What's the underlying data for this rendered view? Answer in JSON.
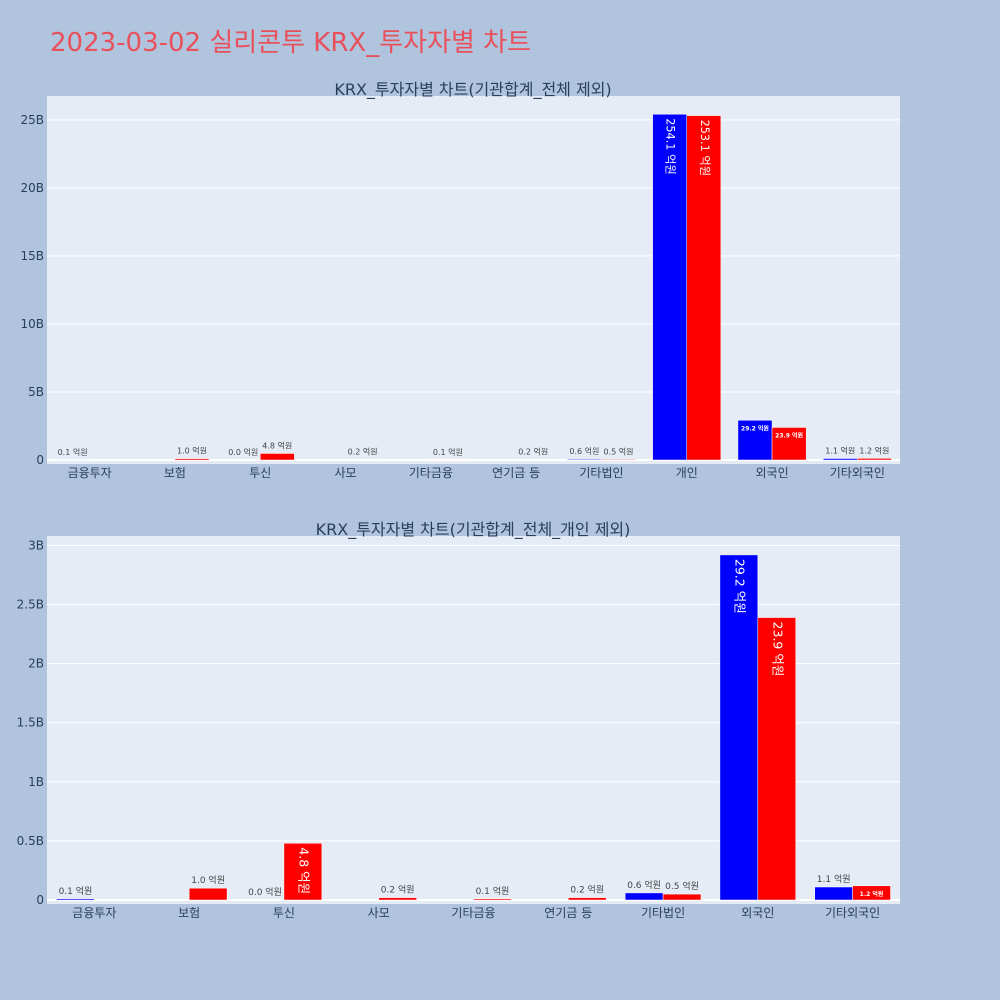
{
  "page_title": "2023-03-02 실리콘투 KRX_투자자별 차트",
  "colors": {
    "buy": "#0000ff",
    "sell": "#ff0000",
    "plot_bg": "#e5ecf6",
    "page_bg": "#b0c4de",
    "title": "#e8505b"
  },
  "chart_data": [
    {
      "type": "bar",
      "title": "KRX_투자자별 차트(기관합계_전체 제외)",
      "categories": [
        "금융투자",
        "보험",
        "투신",
        "사모",
        "기타금융",
        "연기금 등",
        "기타법인",
        "개인",
        "외국인",
        "기타외국인"
      ],
      "series": [
        {
          "color": "#0000ff",
          "values": [
            10000000,
            0,
            0,
            0,
            0,
            0,
            60000000,
            25410000000,
            2920000000,
            110000000
          ],
          "labels": [
            "0.1 억원",
            "",
            "0.0 억원",
            "",
            "",
            "",
            "0.6 억원",
            "254.1 억원",
            "29.2 억원",
            "1.1 억원"
          ]
        },
        {
          "color": "#ff0000",
          "values": [
            0,
            100000000,
            480000000,
            20000000,
            10000000,
            20000000,
            50000000,
            25310000000,
            2390000000,
            120000000
          ],
          "labels": [
            "",
            "1.0 억원",
            "4.8 억원",
            "0.2 억원",
            "0.1 억원",
            "0.2 억원",
            "0.5 억원",
            "253.1 억원",
            "23.9 억원",
            "1.2 억원"
          ]
        }
      ],
      "yticks": [
        0,
        5000000000,
        10000000000,
        15000000000,
        20000000000,
        25000000000
      ],
      "ytick_labels": [
        "0",
        "5B",
        "10B",
        "15B",
        "20B",
        "25B"
      ],
      "ylim": [
        0,
        26750000000
      ],
      "grid": true
    },
    {
      "type": "bar",
      "title": "KRX_투자자별 차트(기관합계_전체_개인 제외)",
      "categories": [
        "금융투자",
        "보험",
        "투신",
        "사모",
        "기타금융",
        "연기금 등",
        "기타법인",
        "외국인",
        "기타외국인"
      ],
      "series": [
        {
          "color": "#0000ff",
          "values": [
            10000000,
            0,
            0,
            0,
            0,
            0,
            60000000,
            2920000000,
            110000000
          ],
          "labels": [
            "0.1 억원",
            "",
            "0.0 억원",
            "",
            "",
            "",
            "0.6 억원",
            "29.2 억원",
            "1.1 억원"
          ]
        },
        {
          "color": "#ff0000",
          "values": [
            0,
            100000000,
            480000000,
            20000000,
            10000000,
            20000000,
            50000000,
            2390000000,
            120000000
          ],
          "labels": [
            "",
            "1.0 억원",
            "4.8 억원",
            "0.2 억원",
            "0.1 억원",
            "0.2 억원",
            "0.5 억원",
            "23.9 억원",
            "1.2 억원"
          ]
        }
      ],
      "yticks": [
        0,
        500000000,
        1000000000,
        1500000000,
        2000000000,
        2500000000,
        3000000000
      ],
      "ytick_labels": [
        "0",
        "0.5B",
        "1B",
        "1.5B",
        "2B",
        "2.5B",
        "3B"
      ],
      "ylim": [
        0,
        3080000000
      ],
      "grid": true
    }
  ]
}
